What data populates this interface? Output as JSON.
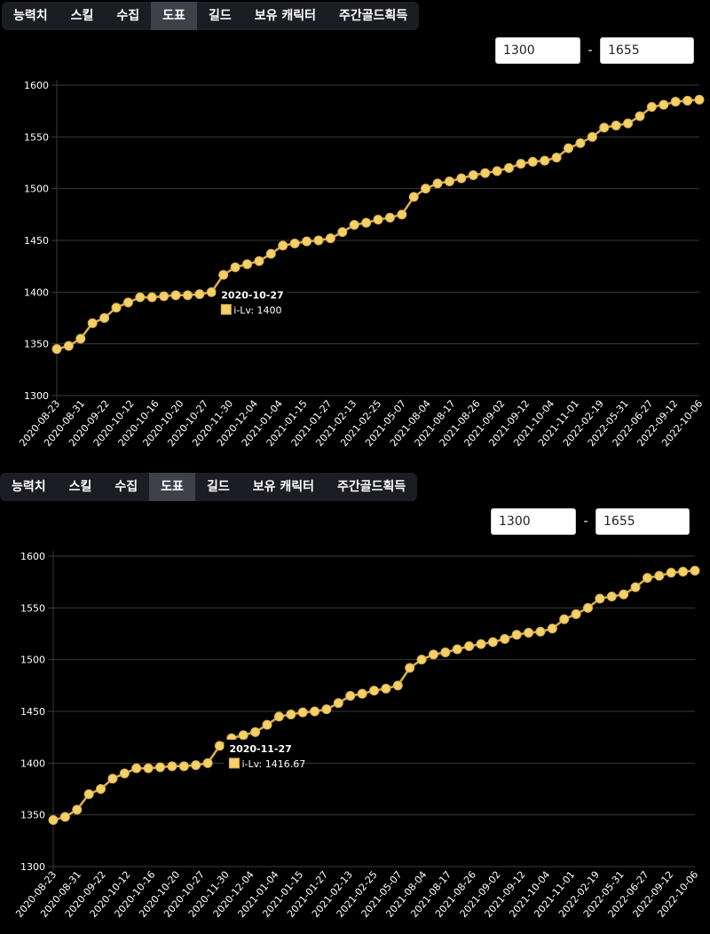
{
  "tabs": [
    "능력치",
    "스킬",
    "수집",
    "도표",
    "길드",
    "보유 캐릭터",
    "주간골드획득"
  ],
  "active_tab": 3,
  "range": {
    "min": "1300",
    "separator": "-",
    "max": "1655"
  },
  "colors": {
    "series": "#d9b04d",
    "point": "#f5cf68",
    "grid": "#3a3a3a",
    "tooltip_bg": "#000000"
  },
  "chart_data": [
    {
      "type": "line",
      "xlabel": "",
      "ylabel": "",
      "ylim": [
        1300,
        1600
      ],
      "yticks": [
        1300,
        1350,
        1400,
        1450,
        1500,
        1550,
        1600
      ],
      "grid": true,
      "x_ticks": [
        "2020-08-23",
        "2020-08-31",
        "2020-09-22",
        "2020-10-12",
        "2020-10-16",
        "2020-10-20",
        "2020-10-27",
        "2020-11-30",
        "2020-12-04",
        "2021-01-04",
        "2021-01-15",
        "2021-01-27",
        "2021-02-13",
        "2021-02-25",
        "2021-05-07",
        "2021-08-04",
        "2021-08-17",
        "2021-08-26",
        "2021-09-02",
        "2021-09-12",
        "2021-10-04",
        "2021-11-01",
        "2022-02-19",
        "2022-05-31",
        "2022-06-27",
        "2022-09-12",
        "2022-10-06"
      ],
      "series": [
        {
          "name": "i-Lv",
          "values": [
            1345,
            1348,
            1355,
            1370,
            1375,
            1385,
            1390,
            1395,
            1395,
            1396,
            1397,
            1397,
            1398,
            1400,
            1416.67,
            1424,
            1427,
            1430,
            1437,
            1445,
            1447,
            1449,
            1450,
            1452,
            1458,
            1465,
            1467,
            1470,
            1472,
            1475,
            1492,
            1500,
            1505,
            1507,
            1510,
            1513,
            1515,
            1517,
            1520,
            1524,
            1526,
            1527,
            1530,
            1539,
            1544,
            1550,
            1559,
            1561,
            1563,
            1570,
            1579,
            1581,
            1584,
            1585,
            1586
          ]
        }
      ],
      "tooltip": {
        "title": "2020-10-27",
        "label": "i-Lv: 1400",
        "index": 13
      }
    },
    {
      "type": "line",
      "xlabel": "",
      "ylabel": "",
      "ylim": [
        1300,
        1600
      ],
      "yticks": [
        1300,
        1350,
        1400,
        1450,
        1500,
        1550,
        1600
      ],
      "grid": true,
      "x_ticks": [
        "2020-08-23",
        "2020-08-31",
        "2020-09-22",
        "2020-10-12",
        "2020-10-16",
        "2020-10-20",
        "2020-10-27",
        "2020-11-30",
        "2020-12-04",
        "2021-01-04",
        "2021-01-15",
        "2021-01-27",
        "2021-02-13",
        "2021-02-25",
        "2021-05-07",
        "2021-08-04",
        "2021-08-17",
        "2021-08-26",
        "2021-09-02",
        "2021-09-12",
        "2021-10-04",
        "2021-11-01",
        "2022-02-19",
        "2022-05-31",
        "2022-06-27",
        "2022-09-12",
        "2022-10-06"
      ],
      "series": [
        {
          "name": "i-Lv",
          "values": [
            1345,
            1348,
            1355,
            1370,
            1375,
            1385,
            1390,
            1395,
            1395,
            1396,
            1397,
            1397,
            1398,
            1400,
            1416.67,
            1424,
            1427,
            1430,
            1437,
            1445,
            1447,
            1449,
            1450,
            1452,
            1458,
            1465,
            1467,
            1470,
            1472,
            1475,
            1492,
            1500,
            1505,
            1507,
            1510,
            1513,
            1515,
            1517,
            1520,
            1524,
            1526,
            1527,
            1530,
            1539,
            1544,
            1550,
            1559,
            1561,
            1563,
            1570,
            1579,
            1581,
            1584,
            1585,
            1586
          ]
        }
      ],
      "tooltip": {
        "title": "2020-11-27",
        "label": "i-Lv: 1416.67",
        "index": 14
      }
    }
  ]
}
